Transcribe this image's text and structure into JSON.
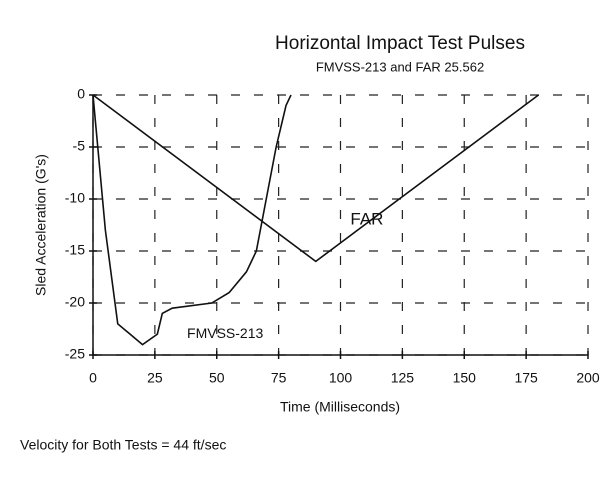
{
  "chart_data": {
    "type": "line",
    "title": "Horizontal Impact Test Pulses",
    "subtitle": "FMVSS-213 and FAR 25.562",
    "x_label": "Time (Milliseconds)",
    "y_label": "Sled Acceleration (G's)",
    "annotation": "Velocity for Both Tests = 44 ft/sec",
    "xlim": [
      0,
      200
    ],
    "xticks": [
      0,
      25,
      50,
      75,
      100,
      125,
      150,
      175,
      200
    ],
    "ylim": [
      -25,
      0
    ],
    "yticks": [
      0,
      -5,
      -10,
      -15,
      -20,
      -25
    ],
    "grid": true,
    "series": [
      {
        "name": "FMVSS-213",
        "color": "#111111",
        "x": [
          0,
          5,
          10,
          20,
          26,
          28,
          32,
          48,
          55,
          62,
          66,
          70,
          74,
          78,
          80
        ],
        "values": [
          0,
          -13,
          -22,
          -24,
          -23,
          -21,
          -20.5,
          -20,
          -19,
          -17,
          -15,
          -10,
          -5,
          -1,
          0
        ]
      },
      {
        "name": "FAR",
        "color": "#111111",
        "x": [
          0,
          90,
          180
        ],
        "values": [
          0,
          -16,
          0
        ]
      }
    ]
  }
}
